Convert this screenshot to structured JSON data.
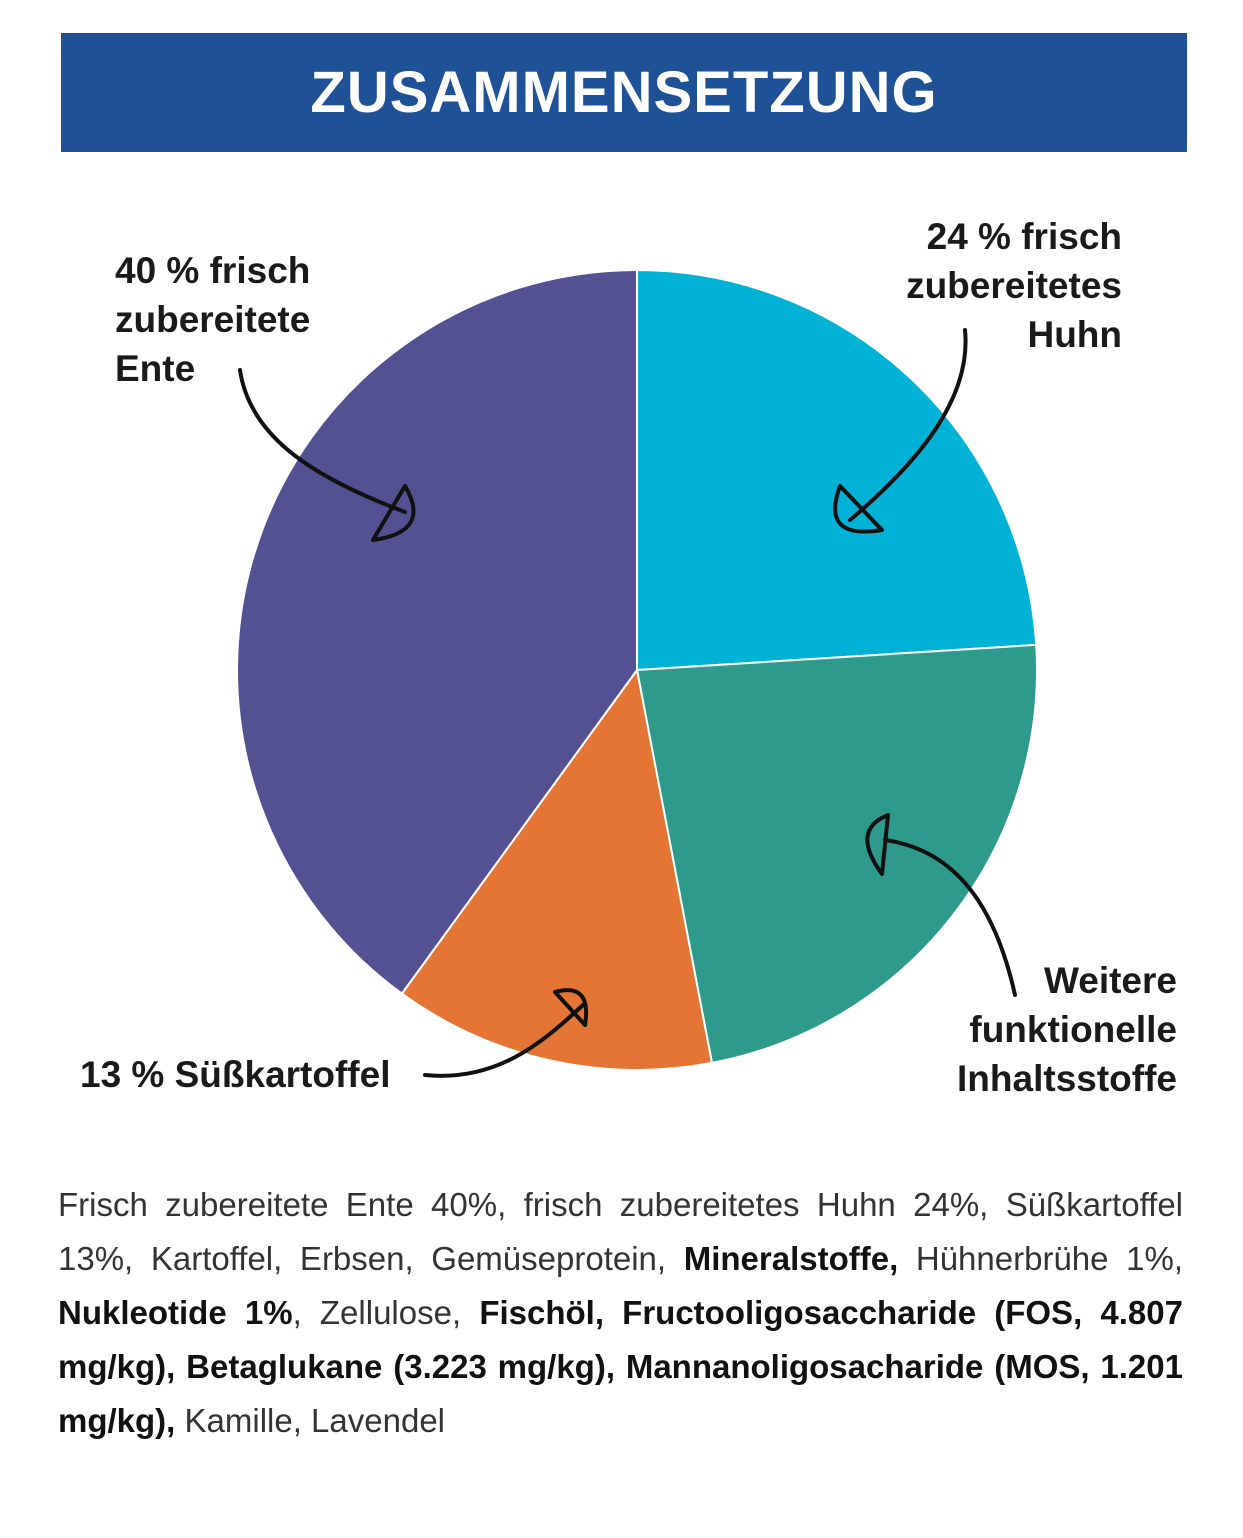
{
  "header": {
    "title": "ZUSAMMENSETZUNG"
  },
  "chart_data": {
    "type": "pie",
    "categories": [
      "24 % frisch\nzubereitetes\nHuhn",
      "Weitere\nfunktionelle\nInhaltsstoffe",
      "13 % Süßkartoffel",
      "40 % frisch\nzubereitete\nEnte"
    ],
    "values": [
      24,
      23,
      13,
      40
    ],
    "colors": [
      "#00b2d6",
      "#2e9a8c",
      "#e57535",
      "#535191"
    ]
  },
  "ingredients": [
    {
      "text": "Frisch zubereitete Ente 40%, frisch zubereitetes Huhn 24%, Süßkartoffel 13%, Kartoffel, Erbsen, Gemüseprotein, ",
      "bold": false
    },
    {
      "text": "Mineralstoffe,",
      "bold": true
    },
    {
      "text": " Hühnerbrühe 1%, ",
      "bold": false
    },
    {
      "text": "Nukleotide 1%",
      "bold": true
    },
    {
      "text": ", Zellulose, ",
      "bold": false
    },
    {
      "text": "Fischöl, Fructooligosaccharide (FOS, 4.807 mg/kg), Betaglukane (3.223 mg/kg), Mannanoligosacharide (MOS, 1.201 mg/kg),",
      "bold": true
    },
    {
      "text": " Kamille, Lavendel",
      "bold": false
    }
  ]
}
